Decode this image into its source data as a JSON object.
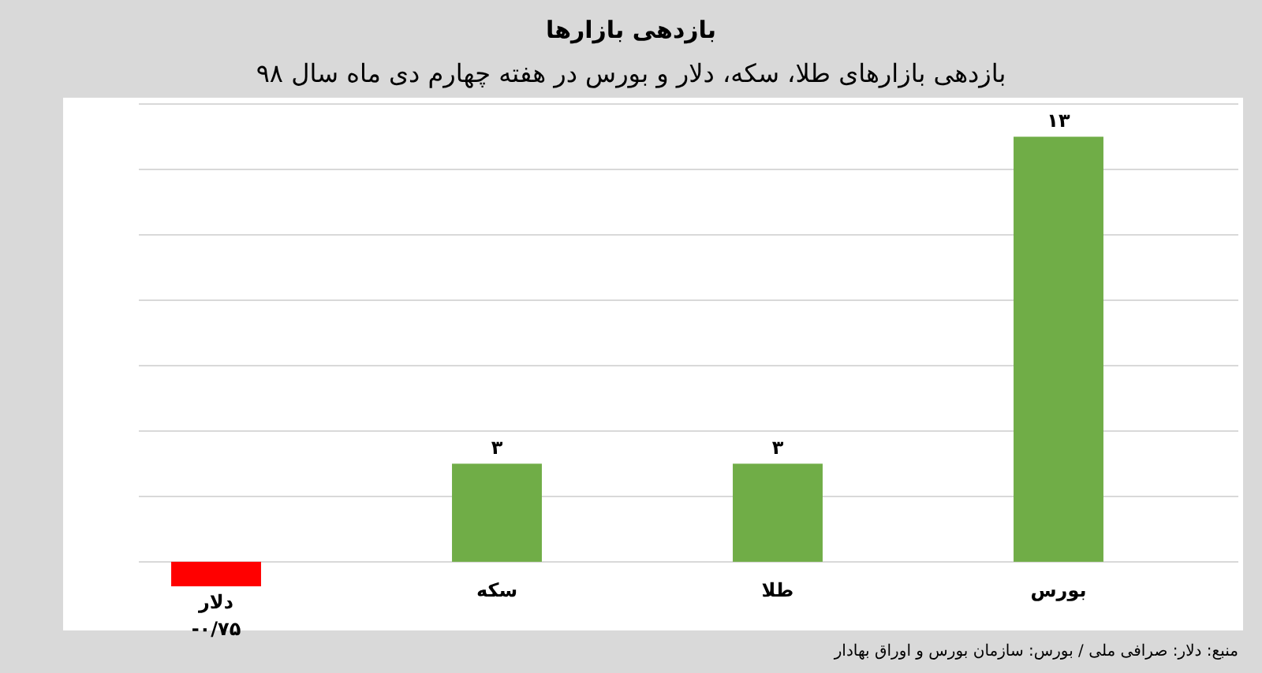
{
  "chart_data": {
    "type": "bar",
    "title": "بازدهی بازارها",
    "subtitle": "بازدهی بازارهای طلا، سکه، دلار و بورس در هفته چهارم دی ماه سال ۹۸",
    "categories": [
      "دلار",
      "سکه",
      "طلا",
      "بورس"
    ],
    "values": [
      -0.75,
      3,
      3,
      13
    ],
    "colors": [
      "#ff0000",
      "#70ad47",
      "#70ad47",
      "#70ad47"
    ],
    "value_labels": [
      "-۰/۷۵",
      "۳",
      "۳",
      "۱۳"
    ],
    "yticks": [
      {
        "value": 0,
        "label": null
      },
      {
        "value": 2,
        "label": null
      },
      {
        "value": 4,
        "label": null
      },
      {
        "value": 6,
        "label": null
      },
      {
        "value": 8,
        "label": null
      },
      {
        "value": 10,
        "label": null
      },
      {
        "value": 12,
        "label": null
      },
      {
        "value": 14,
        "label": null
      }
    ],
    "tick_labels": "x",
    "grid": "y",
    "annotations": [
      "منبع: دلار: صرافی ملی / بورس: سازمان بورس و اوراق بهادار"
    ]
  }
}
